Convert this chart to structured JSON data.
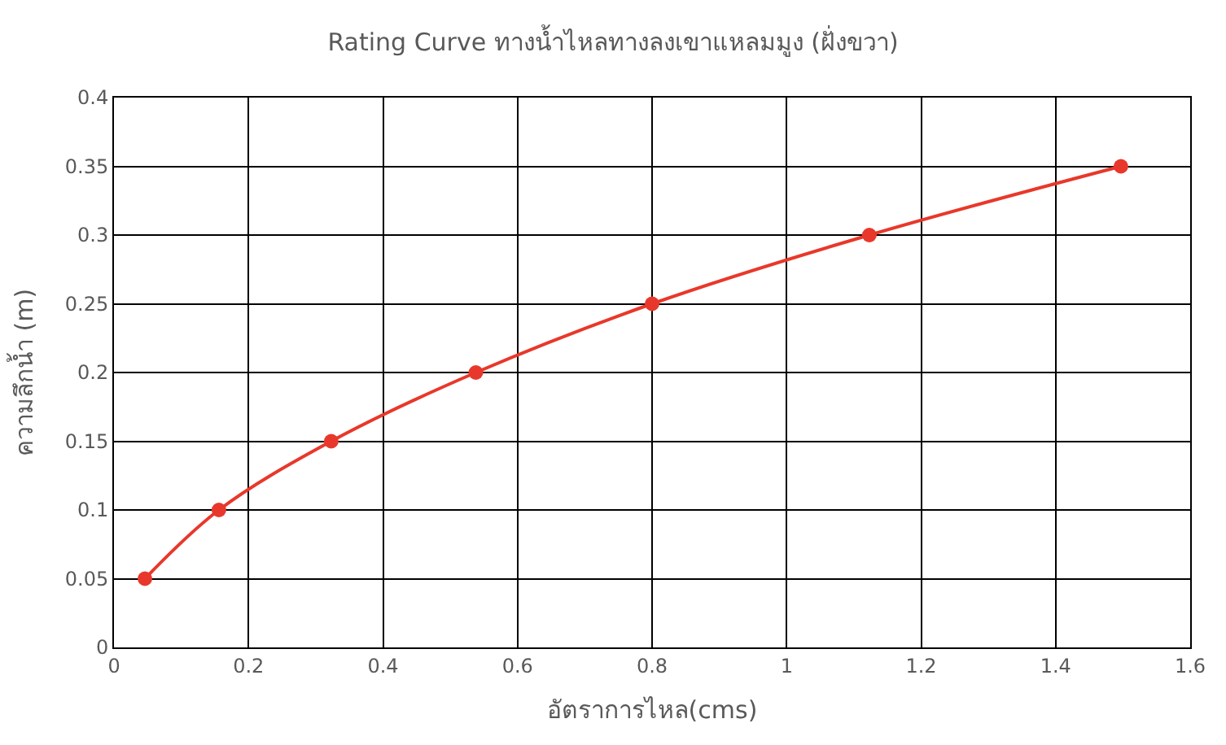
{
  "chart_data": {
    "type": "line",
    "title": "Rating Curve ทางน้ำไหลทางลงเขาแหลมมูง (ฝั่งขวา)",
    "xlabel": "อัตราการไหล(cms)",
    "ylabel": "ความลึกน้ำ (m)",
    "x": [
      0.046,
      0.156,
      0.323,
      0.538,
      0.8,
      1.123,
      1.497
    ],
    "series": [
      {
        "color": "#e8382b",
        "values": [
          0.05,
          0.1,
          0.15,
          0.2,
          0.25,
          0.3,
          0.35
        ]
      }
    ],
    "xlim": [
      0,
      1.6
    ],
    "xticks": [
      0,
      0.2,
      0.4,
      0.6,
      0.8,
      1,
      1.2,
      1.4,
      1.6
    ],
    "ylim": [
      0,
      0.4
    ],
    "yticks": [
      0,
      0.05,
      0.1,
      0.15,
      0.2,
      0.25,
      0.3,
      0.35,
      0.4
    ],
    "grid": true,
    "marker": "circle",
    "line_style": "solid"
  }
}
